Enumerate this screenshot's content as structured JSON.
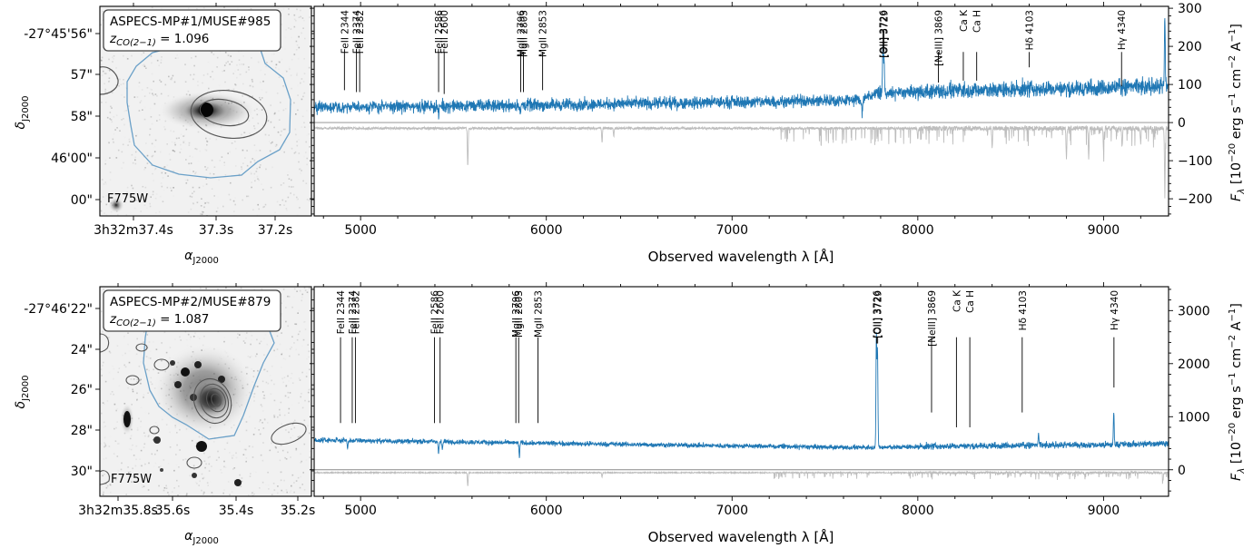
{
  "axis": {
    "xlabel": "Observed wavelength λ [Å]",
    "ylabel_main": "F",
    "ylabel_sub": "λ",
    "ylabel_unit_pre": " [10",
    "ylabel_exp1": "−20",
    "ylabel_unit_mid1": " erg s",
    "ylabel_exp2": "−1",
    "ylabel_unit_mid2": " cm",
    "ylabel_exp3": "−2",
    "ylabel_unit_mid3": " A",
    "ylabel_exp4": "−1",
    "ylabel_unit_end": "]",
    "ra_label_main": "α",
    "ra_label_sub": "J2000",
    "dec_label_main": "δ",
    "dec_label_sub": "J2000"
  },
  "chart_data": [
    {
      "type": "line",
      "title": "ASPECS-MP#1/MUSE#985",
      "redshift_label": "z",
      "redshift_sub": "CO(2−1)",
      "redshift_value": " = 1.096",
      "filter": "F775W",
      "xlim": [
        4750,
        9350
      ],
      "ylim": [
        -245,
        305
      ],
      "x_ticks": [
        "5000",
        "6000",
        "7000",
        "8000",
        "9000"
      ],
      "x_tick_values": [
        5000,
        6000,
        7000,
        8000,
        9000
      ],
      "y_ticks": [
        "300",
        "200",
        "100",
        "0",
        "−100",
        "−200"
      ],
      "y_tick_values": [
        300,
        200,
        100,
        0,
        -100,
        -200
      ],
      "continuum": [
        [
          4750,
          40
        ],
        [
          5200,
          42
        ],
        [
          5800,
          45
        ],
        [
          6500,
          50
        ],
        [
          7200,
          55
        ],
        [
          7700,
          60
        ],
        [
          7750,
          75
        ],
        [
          8200,
          85
        ],
        [
          8700,
          88
        ],
        [
          9350,
          95
        ]
      ],
      "noise_amp": 16,
      "emission": [
        [
          7812,
          120
        ],
        [
          7818,
          100
        ],
        [
          9330,
          180
        ]
      ],
      "absorption": [
        [
          5420,
          -30
        ],
        [
          5860,
          -25
        ],
        [
          7700,
          -35
        ]
      ],
      "sky": [
        [
          5577,
          -100
        ],
        [
          6300,
          -35
        ],
        [
          6363,
          -20
        ],
        [
          8000,
          -30
        ],
        [
          8400,
          -50
        ],
        [
          8800,
          -80
        ],
        [
          8920,
          -80
        ],
        [
          9000,
          -60
        ],
        [
          9100,
          -50
        ],
        [
          9200,
          -40
        ],
        [
          9330,
          -170
        ]
      ],
      "lines": [
        {
          "label": "FeII 2344",
          "x": 4913,
          "top": 290,
          "bottom": 85
        },
        {
          "label": "FeII 2374",
          "x": 4978,
          "top": 290,
          "bottom": 80
        },
        {
          "label": "FeII 2382",
          "x": 4995,
          "top": 290,
          "bottom": 80
        },
        {
          "label": "FeII 2586",
          "x": 5420,
          "top": 290,
          "bottom": 80
        },
        {
          "label": "FeII 2600",
          "x": 5450,
          "top": 290,
          "bottom": 75
        },
        {
          "label": "MgII 2796",
          "x": 5862,
          "top": 290,
          "bottom": 80
        },
        {
          "label": "MgII 2803",
          "x": 5877,
          "top": 290,
          "bottom": 80
        },
        {
          "label": "MgII 2853",
          "x": 5980,
          "top": 290,
          "bottom": 85
        },
        {
          "label": "[OII] 3726",
          "x": 7812,
          "top": 290,
          "bottom": 240
        },
        {
          "label": "[OII] 3729",
          "x": 7818,
          "top": 290,
          "bottom": 240
        },
        {
          "label": "[NeIII] 3869",
          "x": 8111,
          "top": 290,
          "bottom": 105
        },
        {
          "label": "Ca K",
          "x": 8245,
          "top": 290,
          "bottom": 110
        },
        {
          "label": "Ca H",
          "x": 8317,
          "top": 290,
          "bottom": 110
        },
        {
          "label": "Hδ 4103",
          "x": 8600,
          "top": 290,
          "bottom": 145
        },
        {
          "label": "Hγ 4340",
          "x": 9097,
          "top": 290,
          "bottom": 95
        }
      ],
      "ra_ticks": [
        "3h32m37.4s",
        "37.3s",
        "37.2s"
      ],
      "dec_ticks": [
        "-27°45'56\"",
        "57\"",
        "58\"",
        "46'00\"",
        "00\""
      ]
    },
    {
      "type": "line",
      "title": "ASPECS-MP#2/MUSE#879",
      "redshift_label": "z",
      "redshift_sub": "CO(2−1)",
      "redshift_value": " = 1.087",
      "filter": "F775W",
      "xlim": [
        4750,
        9350
      ],
      "ylim": [
        -500,
        3450
      ],
      "x_ticks": [
        "5000",
        "6000",
        "7000",
        "8000",
        "9000"
      ],
      "x_tick_values": [
        5000,
        6000,
        7000,
        8000,
        9000
      ],
      "y_ticks": [
        "3000",
        "2000",
        "1000",
        "0"
      ],
      "y_tick_values": [
        3000,
        2000,
        1000,
        0
      ],
      "continuum": [
        [
          4750,
          560
        ],
        [
          5200,
          540
        ],
        [
          6000,
          500
        ],
        [
          7000,
          450
        ],
        [
          7700,
          420
        ],
        [
          8300,
          450
        ],
        [
          9000,
          470
        ],
        [
          9350,
          500
        ]
      ],
      "noise_amp": 45,
      "emission": [
        [
          7777,
          2150
        ],
        [
          7783,
          1800
        ],
        [
          9055,
          600
        ],
        [
          8650,
          200
        ]
      ],
      "absorption": [
        [
          4930,
          -150
        ],
        [
          5420,
          -200
        ],
        [
          5440,
          -150
        ],
        [
          5855,
          -250
        ]
      ],
      "sky": [
        [
          5577,
          -250
        ],
        [
          6300,
          -80
        ],
        [
          8900,
          -60
        ],
        [
          9320,
          -150
        ]
      ],
      "lines": [
        {
          "label": "FeII 2344",
          "x": 4892,
          "top": 3250,
          "bottom": 880
        },
        {
          "label": "FeII 2374",
          "x": 4955,
          "top": 3250,
          "bottom": 880
        },
        {
          "label": "FeII 2382",
          "x": 4972,
          "top": 3250,
          "bottom": 880
        },
        {
          "label": "FeII 2586",
          "x": 5398,
          "top": 3250,
          "bottom": 880
        },
        {
          "label": "FeII 2600",
          "x": 5428,
          "top": 3250,
          "bottom": 880
        },
        {
          "label": "MgII 2796",
          "x": 5836,
          "top": 3250,
          "bottom": 880
        },
        {
          "label": "MgII 2803",
          "x": 5851,
          "top": 3250,
          "bottom": 880
        },
        {
          "label": "MgII 2853",
          "x": 5955,
          "top": 3250,
          "bottom": 880
        },
        {
          "label": "[OII] 3726",
          "x": 7778,
          "top": 3250,
          "bottom": 2380
        },
        {
          "label": "[OII] 3729",
          "x": 7784,
          "top": 3250,
          "bottom": 2380
        },
        {
          "label": "[NeIII] 3869",
          "x": 8074,
          "top": 3250,
          "bottom": 1080
        },
        {
          "label": "Ca K",
          "x": 8208,
          "top": 3250,
          "bottom": 800
        },
        {
          "label": "Ca H",
          "x": 8280,
          "top": 3250,
          "bottom": 800
        },
        {
          "label": "Hδ 4103",
          "x": 8562,
          "top": 3250,
          "bottom": 1080
        },
        {
          "label": "Hγ 4340",
          "x": 9056,
          "top": 3250,
          "bottom": 1550
        }
      ],
      "ra_ticks": [
        "3h32m35.8s",
        "35.6s",
        "35.4s",
        "35.2s"
      ],
      "dec_ticks": [
        "-27°46'22\"",
        "24\"",
        "26\"",
        "28\"",
        "30\""
      ]
    }
  ],
  "colors": {
    "spectrum": "#1f77b4",
    "sky": "#bdbdbd",
    "zero_line": "#888888",
    "contour_co": "#555555",
    "contour_muse": "#6aa0c8",
    "line_marker": "#000000"
  }
}
